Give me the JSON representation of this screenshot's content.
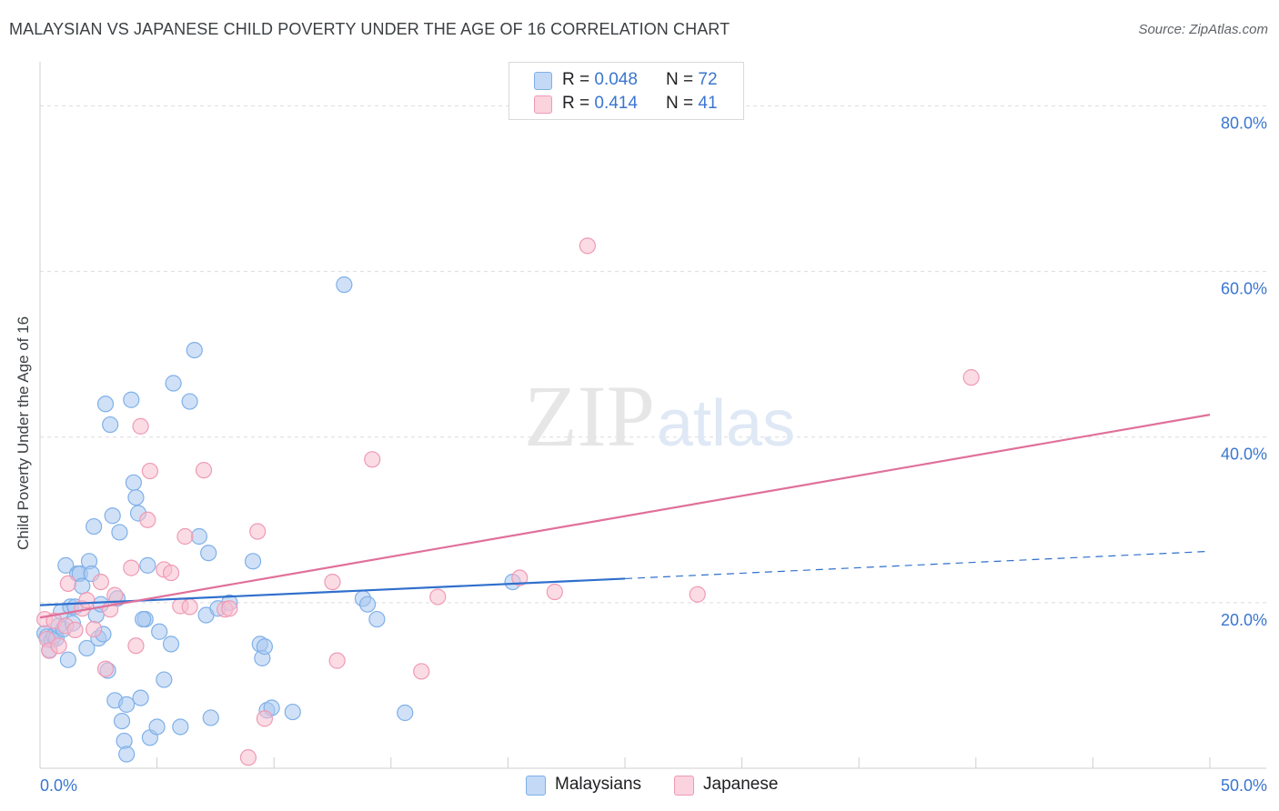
{
  "header": {
    "title": "MALAYSIAN VS JAPANESE CHILD POVERTY UNDER THE AGE OF 16 CORRELATION CHART",
    "source": "Source: ZipAtlas.com"
  },
  "watermark": {
    "zip": "ZIP",
    "atlas": "atlas"
  },
  "legend": {
    "rows": [
      {
        "r_label": "R =",
        "r_value": "0.048",
        "n_label": "N =",
        "n_value": "72",
        "color": "#a9c8f0"
      },
      {
        "r_label": "R =",
        "r_value": "0.414",
        "n_label": "N =",
        "n_value": "41",
        "color": "#f7bfd0"
      }
    ]
  },
  "bottom_legend": {
    "malaysians": "Malaysians",
    "japanese": "Japanese"
  },
  "chart_data": {
    "type": "scatter",
    "title": "MALAYSIAN VS JAPANESE CHILD POVERTY UNDER THE AGE OF 16 CORRELATION CHART",
    "xlabel": "",
    "ylabel": "Child Poverty Under the Age of 16",
    "xlim": [
      0,
      50
    ],
    "ylim": [
      0,
      84
    ],
    "x_tick_labels": [
      "0.0%",
      "50.0%"
    ],
    "y_ticks": [
      20,
      40,
      60,
      80
    ],
    "y_tick_labels": [
      "20.0%",
      "40.0%",
      "60.0%",
      "80.0%"
    ],
    "series": [
      {
        "name": "Malaysians",
        "color": "#7fb0e8",
        "fill": "#a9c8f0",
        "trend": {
          "x0": 0,
          "y0": 19.7,
          "x1": 25,
          "y1": 22.9,
          "dash_to_x": 50,
          "dash_to_y": 26.2,
          "color": "#2f6fcc"
        },
        "points": [
          [
            0.2,
            16.3
          ],
          [
            0.3,
            15.9
          ],
          [
            0.4,
            14.3
          ],
          [
            0.5,
            15.5
          ],
          [
            0.6,
            16.0
          ],
          [
            0.7,
            15.7
          ],
          [
            0.8,
            17.2
          ],
          [
            0.9,
            18.9
          ],
          [
            1.0,
            16.8
          ],
          [
            1.1,
            24.5
          ],
          [
            1.2,
            13.1
          ],
          [
            1.3,
            19.5
          ],
          [
            1.4,
            17.5
          ],
          [
            1.5,
            19.5
          ],
          [
            1.6,
            23.5
          ],
          [
            1.7,
            23.5
          ],
          [
            1.8,
            22.0
          ],
          [
            2.0,
            14.5
          ],
          [
            2.1,
            25.0
          ],
          [
            2.2,
            23.5
          ],
          [
            2.3,
            29.2
          ],
          [
            2.4,
            18.5
          ],
          [
            2.5,
            15.7
          ],
          [
            2.6,
            19.8
          ],
          [
            2.7,
            16.2
          ],
          [
            2.8,
            44.0
          ],
          [
            2.9,
            11.8
          ],
          [
            3.0,
            41.5
          ],
          [
            3.1,
            30.5
          ],
          [
            3.2,
            8.2
          ],
          [
            3.3,
            20.5
          ],
          [
            3.4,
            28.5
          ],
          [
            3.5,
            5.7
          ],
          [
            3.6,
            3.3
          ],
          [
            3.7,
            1.7
          ],
          [
            3.7,
            7.7
          ],
          [
            3.9,
            44.5
          ],
          [
            4.0,
            34.5
          ],
          [
            4.1,
            32.7
          ],
          [
            4.2,
            30.8
          ],
          [
            4.3,
            8.5
          ],
          [
            4.5,
            18.0
          ],
          [
            4.6,
            24.5
          ],
          [
            4.7,
            3.7
          ],
          [
            5.0,
            5.0
          ],
          [
            5.1,
            16.5
          ],
          [
            5.3,
            10.7
          ],
          [
            5.6,
            15.0
          ],
          [
            5.7,
            46.5
          ],
          [
            6.0,
            5.0
          ],
          [
            6.4,
            44.3
          ],
          [
            6.6,
            50.5
          ],
          [
            6.8,
            28.0
          ],
          [
            7.1,
            18.5
          ],
          [
            7.2,
            26.0
          ],
          [
            7.3,
            6.1
          ],
          [
            7.6,
            19.3
          ],
          [
            8.1,
            20.0
          ],
          [
            9.1,
            25.0
          ],
          [
            9.4,
            15.0
          ],
          [
            9.5,
            13.3
          ],
          [
            9.6,
            14.7
          ],
          [
            9.7,
            7.0
          ],
          [
            9.9,
            7.3
          ],
          [
            10.8,
            6.8
          ],
          [
            13.0,
            58.4
          ],
          [
            13.8,
            20.5
          ],
          [
            14.0,
            19.8
          ],
          [
            14.4,
            18.0
          ],
          [
            15.6,
            6.7
          ],
          [
            20.2,
            22.5
          ],
          [
            4.4,
            18.0
          ]
        ]
      },
      {
        "name": "Japanese",
        "color": "#ef9ab5",
        "fill": "#f7bfd0",
        "trend": {
          "x0": 0,
          "y0": 18.2,
          "x1": 50,
          "y1": 42.7,
          "color": "#e0709a"
        },
        "points": [
          [
            0.2,
            18.0
          ],
          [
            0.3,
            15.6
          ],
          [
            0.4,
            14.2
          ],
          [
            0.6,
            17.8
          ],
          [
            0.8,
            14.8
          ],
          [
            1.1,
            17.2
          ],
          [
            1.5,
            16.7
          ],
          [
            1.8,
            19.3
          ],
          [
            2.0,
            20.3
          ],
          [
            2.3,
            16.8
          ],
          [
            2.6,
            22.5
          ],
          [
            2.8,
            12.0
          ],
          [
            3.0,
            19.2
          ],
          [
            3.2,
            20.9
          ],
          [
            4.1,
            14.8
          ],
          [
            4.3,
            41.3
          ],
          [
            4.6,
            30.0
          ],
          [
            4.7,
            35.9
          ],
          [
            5.3,
            24.0
          ],
          [
            5.6,
            23.6
          ],
          [
            6.0,
            19.6
          ],
          [
            6.2,
            28.0
          ],
          [
            6.4,
            19.5
          ],
          [
            7.0,
            36.0
          ],
          [
            7.9,
            19.2
          ],
          [
            8.1,
            19.3
          ],
          [
            8.9,
            1.3
          ],
          [
            9.3,
            28.6
          ],
          [
            9.6,
            6.0
          ],
          [
            12.5,
            22.5
          ],
          [
            12.7,
            13.0
          ],
          [
            14.2,
            37.3
          ],
          [
            16.3,
            11.7
          ],
          [
            17.0,
            20.7
          ],
          [
            20.5,
            23.0
          ],
          [
            22.0,
            21.3
          ],
          [
            23.4,
            63.1
          ],
          [
            28.1,
            21.0
          ],
          [
            39.8,
            47.2
          ],
          [
            1.2,
            22.3
          ],
          [
            3.9,
            24.2
          ]
        ]
      }
    ]
  }
}
